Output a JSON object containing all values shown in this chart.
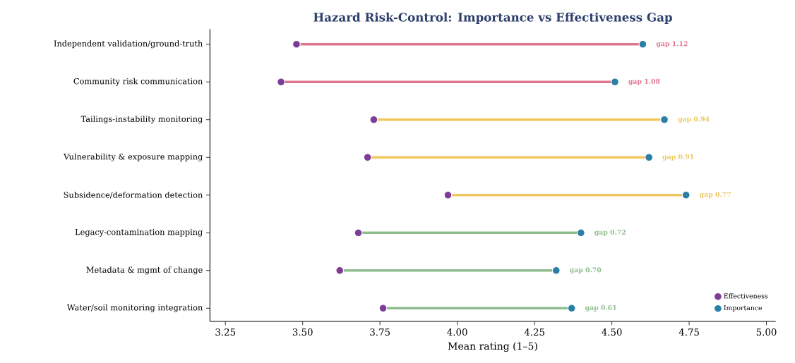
{
  "chart_data": {
    "type": "bar",
    "orientation": "horizontal",
    "title": "Hazard Risk-Control: Importance vs Effectiveness Gap",
    "xlabel": "Mean rating (1–5)",
    "categories": [
      "Independent validation/ground-truth",
      "Community risk communication",
      "Tailings-instability monitoring",
      "Vulnerability & exposure mapping",
      "Subsidence/deformation detection",
      "Legacy-contamination mapping",
      "Metadata & mgmt of change",
      "Water/soil monitoring integration"
    ],
    "series": [
      {
        "type": "bar",
        "base": [
          3.48,
          3.43,
          3.73,
          3.71,
          3.97,
          3.68,
          3.62,
          3.76
        ],
        "values": [
          1.12,
          1.08,
          0.94,
          0.91,
          0.77,
          0.72,
          0.7,
          0.61
        ],
        "colors": [
          "#e0768e",
          "#e0768e",
          "#f0c75e",
          "#f0c75e",
          "#f0c75e",
          "#8fbc8f",
          "#8fbc8f",
          "#8fbc8f"
        ],
        "value_labels": [
          "gap 1.12",
          "gap 1.08",
          "gap 0.94",
          "gap 0.91",
          "gap 0.77",
          "gap 0.72",
          "gap 0.70",
          "gap 0.61"
        ]
      },
      {
        "type": "scatter",
        "name": "Effectiveness",
        "color": "#7d3c98",
        "values": [
          3.48,
          3.43,
          3.73,
          3.71,
          3.97,
          3.68,
          3.62,
          3.76
        ]
      },
      {
        "type": "scatter",
        "name": "Importance",
        "color": "#2a7fa6",
        "values": [
          4.6,
          4.51,
          4.67,
          4.62,
          4.74,
          4.4,
          4.32,
          4.37
        ]
      }
    ],
    "xlim": [
      3.2,
      5.03
    ],
    "xticks": [
      3.25,
      {
        "value": 3.5,
        "label": "3.50"
      },
      3.75,
      {
        "value": 4,
        "label": "4.00"
      },
      4.25,
      {
        "value": 4.5,
        "label": "4.50"
      },
      4.75,
      {
        "value": 5,
        "label": "5.00"
      }
    ],
    "marker": "circle",
    "legend": "bottom right",
    "grid": false
  }
}
